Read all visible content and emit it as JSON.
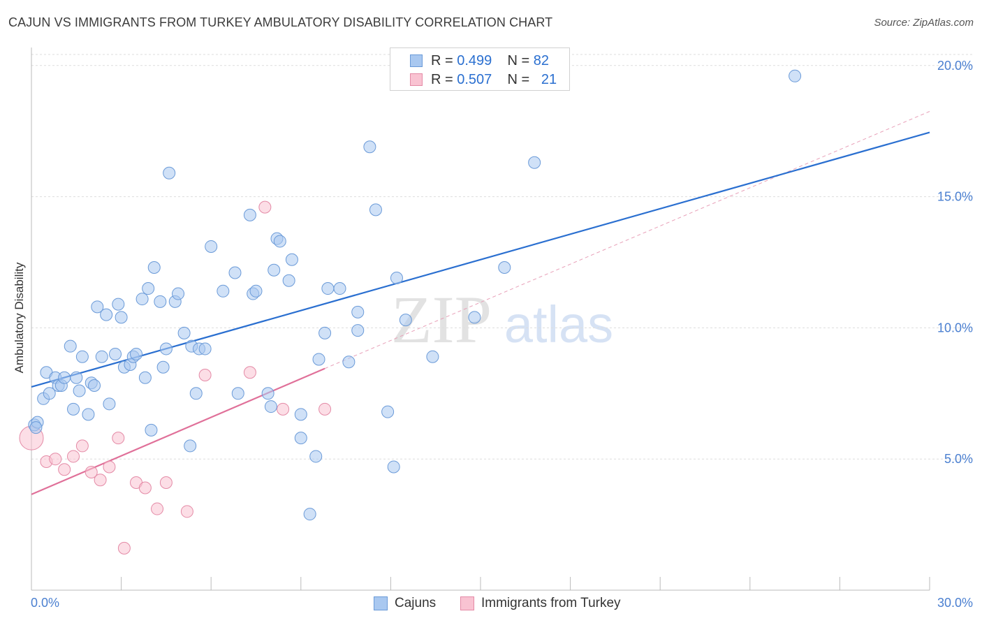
{
  "title": "CAJUN VS IMMIGRANTS FROM TURKEY AMBULATORY DISABILITY CORRELATION CHART",
  "source": "Source: ZipAtlas.com",
  "watermark": {
    "zip": "ZIP",
    "atlas": "atlas"
  },
  "legend": {
    "rows": [
      {
        "r_label": "R =",
        "r_value": "0.499",
        "n_label": "N =",
        "n_value": "82",
        "color": "#a9c8f0",
        "border": "#6a9ad8"
      },
      {
        "r_label": "R =",
        "r_value": "0.507",
        "n_label": "N =",
        "n_value": "21",
        "color": "#f9c3d2",
        "border": "#e48aa6"
      }
    ]
  },
  "bottom_legend": [
    {
      "label": "Cajuns",
      "color": "#a9c8f0",
      "border": "#6a9ad8"
    },
    {
      "label": "Immigrants from Turkey",
      "color": "#f9c3d2",
      "border": "#e48aa6"
    }
  ],
  "chart_data": {
    "type": "scatter",
    "title": "CAJUN VS IMMIGRANTS FROM TURKEY AMBULATORY DISABILITY CORRELATION CHART",
    "xlabel": "",
    "ylabel": "Ambulatory Disability",
    "xlim": [
      0,
      30
    ],
    "ylim": [
      0,
      20.5
    ],
    "x_tick_labels": [
      "0.0%",
      "30.0%"
    ],
    "y_ticks": [
      5,
      10,
      15,
      20
    ],
    "y_tick_labels": [
      "5.0%",
      "10.0%",
      "15.0%",
      "20.0%"
    ],
    "grid": "horizontal dashed",
    "legend_position": "top-center",
    "series": [
      {
        "name": "Cajuns",
        "color": "#a9c8f0",
        "stroke": "#6a9ad8",
        "points": [
          [
            0.1,
            6.3
          ],
          [
            0.2,
            6.4
          ],
          [
            0.4,
            7.3
          ],
          [
            0.5,
            8.3
          ],
          [
            0.6,
            7.5
          ],
          [
            0.8,
            8.1
          ],
          [
            0.9,
            7.8
          ],
          [
            1.0,
            7.8
          ],
          [
            1.1,
            8.1
          ],
          [
            1.3,
            9.3
          ],
          [
            1.4,
            6.9
          ],
          [
            1.5,
            8.1
          ],
          [
            1.6,
            7.6
          ],
          [
            1.7,
            8.9
          ],
          [
            1.9,
            6.7
          ],
          [
            2.0,
            7.9
          ],
          [
            2.1,
            7.8
          ],
          [
            2.2,
            10.8
          ],
          [
            2.35,
            8.9
          ],
          [
            2.5,
            10.5
          ],
          [
            2.6,
            7.1
          ],
          [
            2.8,
            9.0
          ],
          [
            2.9,
            10.9
          ],
          [
            3.0,
            10.4
          ],
          [
            3.1,
            8.5
          ],
          [
            3.3,
            8.6
          ],
          [
            3.4,
            8.9
          ],
          [
            3.5,
            9.0
          ],
          [
            3.7,
            11.1
          ],
          [
            3.8,
            8.1
          ],
          [
            3.9,
            11.5
          ],
          [
            4.0,
            6.1
          ],
          [
            4.1,
            12.3
          ],
          [
            4.3,
            11.0
          ],
          [
            4.4,
            8.5
          ],
          [
            4.5,
            9.2
          ],
          [
            4.6,
            15.9
          ],
          [
            4.8,
            11.0
          ],
          [
            4.9,
            11.3
          ],
          [
            5.1,
            9.8
          ],
          [
            5.3,
            5.5
          ],
          [
            5.35,
            9.3
          ],
          [
            5.5,
            7.5
          ],
          [
            5.6,
            9.2
          ],
          [
            5.8,
            9.2
          ],
          [
            6.0,
            13.1
          ],
          [
            6.4,
            11.4
          ],
          [
            6.8,
            12.1
          ],
          [
            6.9,
            7.5
          ],
          [
            7.3,
            14.3
          ],
          [
            7.4,
            11.3
          ],
          [
            7.5,
            11.4
          ],
          [
            7.9,
            7.5
          ],
          [
            8.0,
            7.0
          ],
          [
            8.1,
            12.2
          ],
          [
            8.2,
            13.4
          ],
          [
            8.3,
            13.3
          ],
          [
            8.6,
            11.8
          ],
          [
            8.7,
            12.6
          ],
          [
            9.0,
            6.7
          ],
          [
            9.0,
            5.8
          ],
          [
            9.3,
            2.9
          ],
          [
            9.5,
            5.1
          ],
          [
            9.6,
            8.8
          ],
          [
            9.8,
            9.8
          ],
          [
            9.9,
            11.5
          ],
          [
            10.3,
            11.5
          ],
          [
            10.6,
            8.7
          ],
          [
            10.9,
            9.9
          ],
          [
            10.9,
            10.6
          ],
          [
            11.3,
            16.9
          ],
          [
            11.5,
            14.5
          ],
          [
            11.9,
            6.8
          ],
          [
            12.1,
            4.7
          ],
          [
            12.2,
            11.9
          ],
          [
            12.5,
            10.3
          ],
          [
            13.4,
            8.9
          ],
          [
            14.8,
            10.4
          ],
          [
            15.8,
            12.3
          ],
          [
            16.8,
            16.3
          ],
          [
            25.5,
            19.6
          ],
          [
            0.15,
            6.2
          ]
        ],
        "trend_line": {
          "x": [
            0,
            30
          ],
          "y": [
            7.75,
            17.45
          ]
        }
      },
      {
        "name": "Immigrants from Turkey",
        "color": "#f9c3d2",
        "stroke": "#e48aa6",
        "points": [
          [
            0.0,
            5.8
          ],
          [
            0.5,
            4.9
          ],
          [
            0.8,
            5.0
          ],
          [
            1.1,
            4.6
          ],
          [
            1.4,
            5.1
          ],
          [
            1.7,
            5.5
          ],
          [
            2.0,
            4.5
          ],
          [
            2.3,
            4.2
          ],
          [
            2.6,
            4.7
          ],
          [
            2.9,
            5.8
          ],
          [
            3.1,
            1.6
          ],
          [
            3.5,
            4.1
          ],
          [
            3.8,
            3.9
          ],
          [
            4.2,
            3.1
          ],
          [
            4.5,
            4.1
          ],
          [
            5.2,
            3.0
          ],
          [
            5.8,
            8.2
          ],
          [
            7.3,
            8.3
          ],
          [
            7.8,
            14.6
          ],
          [
            8.4,
            6.9
          ],
          [
            9.8,
            6.9
          ]
        ],
        "trend_line": {
          "x": [
            0,
            9.8
          ],
          "y": [
            3.65,
            8.45
          ]
        },
        "trend_extension": {
          "x": [
            9.8,
            30
          ],
          "y": [
            8.45,
            18.25
          ]
        }
      }
    ]
  }
}
